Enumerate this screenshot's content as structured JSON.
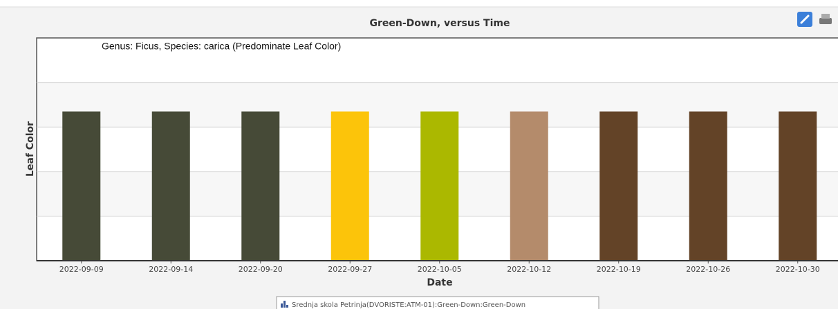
{
  "chart_data": {
    "type": "bar",
    "title": "Green-Down, versus Time",
    "annotation": "Genus: Ficus, Species: carica (Predominate Leaf Color)",
    "x_label": "Date",
    "y_label": "Leaf Color",
    "categories": [
      "2022-09-09",
      "2022-09-14",
      "2022-09-20",
      "2022-09-27",
      "2022-10-05",
      "2022-10-12",
      "2022-10-19",
      "2022-10-26",
      "2022-10-30"
    ],
    "series": [
      {
        "name": "Srednja skola Petrinja(DVORISTE:ATM-01):Green-Down:Green-Down",
        "colors": [
          "#464a37",
          "#464a37",
          "#464a37",
          "#fcc40a",
          "#abb800",
          "#b48b6b",
          "#634327",
          "#634327",
          "#634327"
        ],
        "values": [
          3.35,
          3.35,
          3.35,
          3.35,
          3.35,
          3.35,
          3.35,
          3.35,
          3.35
        ]
      }
    ],
    "ylim": [
      0,
      5
    ],
    "yticks": [
      1,
      2,
      3,
      4
    ],
    "grid": true
  }
}
